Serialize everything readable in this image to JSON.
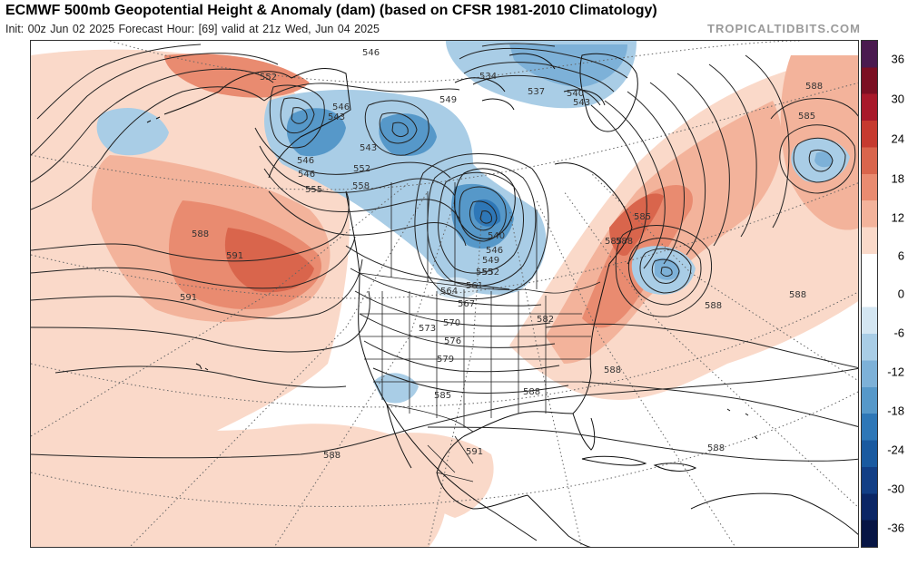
{
  "header": {
    "title": "ECMWF 500mb Geopotential Height & Anomaly (dam) (based on CFSR 1981-2010 Climatology)",
    "subtitle": "Init: 00z Jun 02 2025   Forecast Hour: [69]   valid at 21z Wed, Jun 04 2025",
    "brand": "TROPICALTIDBITS.COM"
  },
  "colorbar": {
    "labels": [
      "36",
      "30",
      "24",
      "18",
      "12",
      "6",
      "0",
      "-6",
      "-12",
      "-18",
      "-24",
      "-30",
      "-36"
    ],
    "colors": [
      "#4a1a4f",
      "#7b0f22",
      "#a8192a",
      "#c63a2f",
      "#d9654c",
      "#e98b70",
      "#f3b39b",
      "#fad9c9",
      "#ffffff",
      "#ffffff",
      "#d4e6f2",
      "#a9cde6",
      "#7db1d8",
      "#5698c9",
      "#2e77b7",
      "#1a5aa0",
      "#123e85",
      "#0b2665",
      "#071544"
    ]
  },
  "contour_labels": [
    {
      "text": "546"
    },
    {
      "text": "552"
    },
    {
      "text": "534"
    },
    {
      "text": "537"
    },
    {
      "text": "540"
    },
    {
      "text": "543"
    },
    {
      "text": "549"
    },
    {
      "text": "546"
    },
    {
      "text": "543"
    },
    {
      "text": "543"
    },
    {
      "text": "546"
    },
    {
      "text": "546"
    },
    {
      "text": "552"
    },
    {
      "text": "555"
    },
    {
      "text": "558"
    },
    {
      "text": "540"
    },
    {
      "text": "546"
    },
    {
      "text": "549"
    },
    {
      "text": "552"
    },
    {
      "text": "555"
    },
    {
      "text": "561"
    },
    {
      "text": "564"
    },
    {
      "text": "567"
    },
    {
      "text": "570"
    },
    {
      "text": "573"
    },
    {
      "text": "576"
    },
    {
      "text": "579"
    },
    {
      "text": "582"
    },
    {
      "text": "585"
    },
    {
      "text": "585"
    },
    {
      "text": "585"
    },
    {
      "text": "588"
    },
    {
      "text": "588"
    },
    {
      "text": "588"
    },
    {
      "text": "588"
    },
    {
      "text": "588"
    },
    {
      "text": "588"
    },
    {
      "text": "588"
    },
    {
      "text": "588"
    },
    {
      "text": "588"
    },
    {
      "text": "591"
    },
    {
      "text": "591"
    },
    {
      "text": "591"
    },
    {
      "text": "585"
    }
  ]
}
